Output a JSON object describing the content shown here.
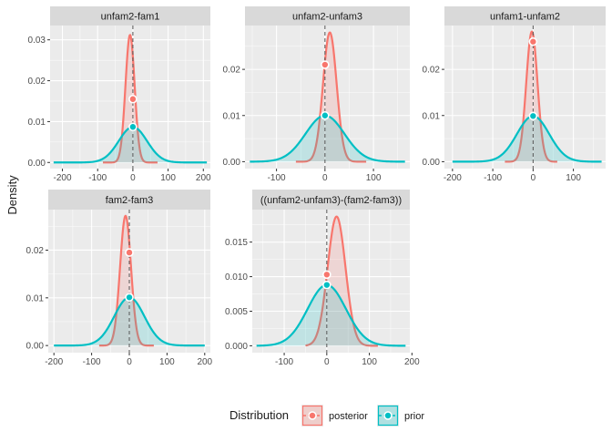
{
  "figure": {
    "ylabel": "Density",
    "legend": {
      "title": "Distribution",
      "placement": "bottom",
      "entries": [
        {
          "label": "posterior",
          "color": "#F8766D"
        },
        {
          "label": "prior",
          "color": "#00BFC4"
        }
      ]
    },
    "colors": {
      "posterior": "#F8766D",
      "prior": "#00BFC4",
      "panel_background": "#EBEBEB",
      "strip_background": "#D9D9D9",
      "grid": "#FFFFFF",
      "reference_line": "#555555"
    }
  },
  "chart_data": [
    {
      "type": "area",
      "title": "unfam2-fam1",
      "xlim": [
        -235,
        220
      ],
      "ylim": [
        -0.0015,
        0.0335
      ],
      "xticks": [
        -200,
        -100,
        0,
        100,
        200
      ],
      "yticks": [
        0.0,
        0.01,
        0.02,
        0.03
      ],
      "ytick_labels": [
        "0.00",
        "0.01",
        "0.02",
        "0.03"
      ],
      "reference_x": 0,
      "series": [
        {
          "name": "posterior",
          "shape": "normal",
          "mean": -8,
          "sd": 13,
          "peak": 0.0312,
          "x_range": [
            -85,
            70
          ],
          "point": {
            "x": 0,
            "y": 0.0155
          }
        },
        {
          "name": "prior",
          "shape": "normal",
          "mean": 0,
          "sd": 40,
          "peak": 0.0087,
          "x_range": [
            -225,
            210
          ],
          "point": {
            "x": 0,
            "y": 0.0087
          }
        }
      ]
    },
    {
      "type": "area",
      "title": "unfam2-unfam3",
      "xlim": [
        -165,
        175
      ],
      "ylim": [
        -0.0015,
        0.0295
      ],
      "xticks": [
        -100,
        0,
        100
      ],
      "yticks": [
        0.0,
        0.01,
        0.02
      ],
      "ytick_labels": [
        "0.00",
        "0.01",
        "0.02"
      ],
      "reference_x": 0,
      "series": [
        {
          "name": "posterior",
          "shape": "normal",
          "mean": 10,
          "sd": 14,
          "peak": 0.028,
          "x_range": [
            -60,
            85
          ],
          "point": {
            "x": 0,
            "y": 0.021
          }
        },
        {
          "name": "prior",
          "shape": "normal",
          "mean": 0,
          "sd": 40,
          "peak": 0.01,
          "x_range": [
            -155,
            165
          ],
          "point": {
            "x": 0,
            "y": 0.01
          }
        }
      ]
    },
    {
      "type": "area",
      "title": "unfam1-unfam2",
      "xlim": [
        -220,
        180
      ],
      "ylim": [
        -0.0015,
        0.0295
      ],
      "xticks": [
        -200,
        -100,
        0,
        100
      ],
      "yticks": [
        0.0,
        0.01,
        0.02
      ],
      "ytick_labels": [
        "0.00",
        "0.01",
        "0.02"
      ],
      "reference_x": 0,
      "series": [
        {
          "name": "posterior",
          "shape": "normal",
          "mean": -3,
          "sd": 14,
          "peak": 0.0282,
          "x_range": [
            -70,
            60
          ],
          "point": {
            "x": 0,
            "y": 0.026
          }
        },
        {
          "name": "prior",
          "shape": "normal",
          "mean": 0,
          "sd": 40,
          "peak": 0.0099,
          "x_range": [
            -200,
            170
          ],
          "point": {
            "x": 0,
            "y": 0.0099
          }
        }
      ]
    },
    {
      "type": "area",
      "title": "fam2-fam3",
      "xlim": [
        -215,
        215
      ],
      "ylim": [
        -0.0015,
        0.0285
      ],
      "xticks": [
        -200,
        -100,
        0,
        100,
        200
      ],
      "yticks": [
        0.0,
        0.01,
        0.02
      ],
      "ytick_labels": [
        "0.00",
        "0.01",
        "0.02"
      ],
      "reference_x": 0,
      "series": [
        {
          "name": "posterior",
          "shape": "normal",
          "mean": -10,
          "sd": 14.5,
          "peak": 0.0272,
          "x_range": [
            -80,
            65
          ],
          "point": {
            "x": 0,
            "y": 0.0195
          }
        },
        {
          "name": "prior",
          "shape": "normal",
          "mean": 0,
          "sd": 40,
          "peak": 0.0101,
          "x_range": [
            -200,
            200
          ],
          "point": {
            "x": 0,
            "y": 0.0101
          }
        }
      ]
    },
    {
      "type": "area",
      "title": "((unfam2-unfam3)-(fam2-fam3))",
      "xlim": [
        -175,
        195
      ],
      "ylim": [
        -0.001,
        0.0197
      ],
      "xticks": [
        -100,
        0,
        100,
        200
      ],
      "yticks": [
        0.0,
        0.005,
        0.01,
        0.015
      ],
      "ytick_labels": [
        "0.000",
        "0.005",
        "0.010",
        "0.015"
      ],
      "reference_x": 0,
      "series": [
        {
          "name": "posterior",
          "shape": "normal",
          "mean": 23,
          "sd": 21,
          "peak": 0.0187,
          "x_range": [
            -50,
            120
          ],
          "point": {
            "x": 0,
            "y": 0.0103
          }
        },
        {
          "name": "prior",
          "shape": "normal",
          "mean": 0,
          "sd": 45,
          "peak": 0.0088,
          "x_range": [
            -165,
            185
          ],
          "point": {
            "x": 0,
            "y": 0.0088
          }
        }
      ]
    }
  ]
}
